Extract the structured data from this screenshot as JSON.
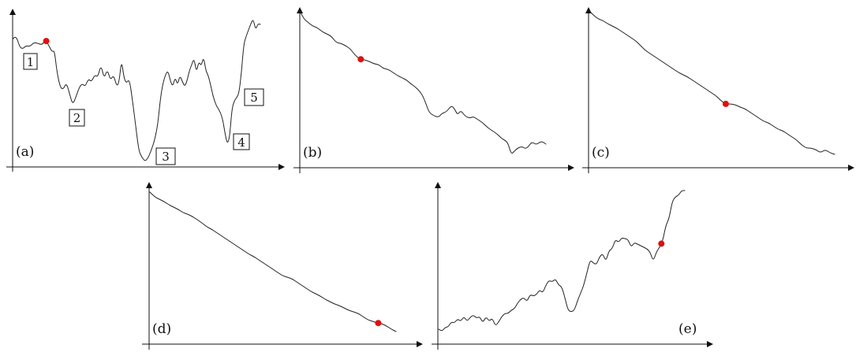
{
  "colors": {
    "curve": "#222222",
    "axis": "#111111",
    "marker": "#e01010"
  },
  "panels": [
    {
      "id": "a",
      "label": "(a)",
      "marker": 0.06,
      "minima": [
        {
          "label": "1"
        },
        {
          "label": "2"
        },
        {
          "label": "3"
        },
        {
          "label": "4"
        },
        {
          "label": "5"
        }
      ]
    },
    {
      "id": "b",
      "label": "(b)",
      "marker": 0.24
    },
    {
      "id": "c",
      "label": "(c)",
      "marker": 0.57
    },
    {
      "id": "d",
      "label": "(d)",
      "marker": 0.93
    },
    {
      "id": "e",
      "label": "(e)",
      "marker": 0.87
    }
  ]
}
